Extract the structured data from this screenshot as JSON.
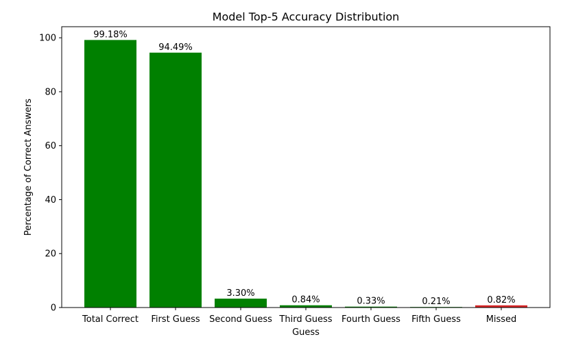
{
  "chart_data": {
    "type": "bar",
    "title": "Model Top-5 Accuracy Distribution",
    "xlabel": "Guess",
    "ylabel": "Percentage of Correct Answers",
    "categories": [
      "Total Correct",
      "First Guess",
      "Second Guess",
      "Third Guess",
      "Fourth Guess",
      "Fifth Guess",
      "Missed"
    ],
    "values": [
      99.18,
      94.49,
      3.3,
      0.84,
      0.33,
      0.21,
      0.82
    ],
    "value_labels": [
      "99.18%",
      "94.49%",
      "3.30%",
      "0.84%",
      "0.33%",
      "0.21%",
      "0.82%"
    ],
    "bar_colors": [
      "#008000",
      "#008000",
      "#008000",
      "#008000",
      "#008000",
      "#008000",
      "#d62728"
    ],
    "ylim": [
      0,
      104.1
    ],
    "yticks": [
      0,
      20,
      40,
      60,
      80,
      100
    ],
    "grid": false,
    "legend": "none"
  }
}
